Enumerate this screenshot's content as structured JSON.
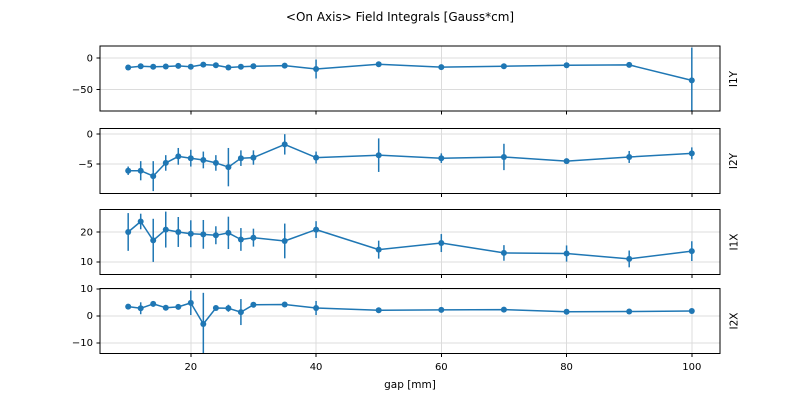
{
  "chart_data": {
    "type": "line",
    "title": "<On Axis> Field Integrals [Gauss*cm]",
    "xlabel": "gap [mm]",
    "grid": true,
    "legend": "none",
    "line_color": "#1f77b4",
    "grid_color": "#dcdcdc",
    "background_color": "#ffffff",
    "marker": "circle",
    "error_bars": true,
    "x": [
      10,
      12,
      14,
      16,
      18,
      20,
      22,
      24,
      26,
      28,
      30,
      35,
      40,
      50,
      60,
      70,
      80,
      90,
      100
    ],
    "xlim": [
      5.5,
      104.5
    ],
    "xticks": [
      20,
      40,
      60,
      80,
      100
    ],
    "subplots": [
      {
        "ylabel": "I1Y",
        "ylim": [
          -84,
          19
        ],
        "yticks": [
          0,
          -50
        ],
        "values": [
          -15,
          -13,
          -14,
          -13.5,
          -12.5,
          -14,
          -10.5,
          -11.5,
          -15,
          -14,
          -13,
          -12,
          -17.5,
          -10,
          -14.5,
          -13,
          -11.5,
          -11,
          -35.5
        ],
        "errors": [
          1.5,
          1,
          1,
          1,
          1,
          1,
          1,
          1,
          1.5,
          1,
          1,
          1.5,
          15,
          1.5,
          1.5,
          1,
          1,
          2,
          52
        ]
      },
      {
        "ylabel": "I2Y",
        "ylim": [
          -9.9,
          0.95
        ],
        "yticks": [
          0,
          -5
        ],
        "values": [
          -6.1,
          -6.1,
          -7.0,
          -4.8,
          -3.7,
          -4.0,
          -4.3,
          -4.8,
          -5.5,
          -4.0,
          -3.9,
          -1.7,
          -3.9,
          -3.5,
          -4.0,
          -3.8,
          -4.5,
          -3.8,
          -3.2
        ],
        "errors": [
          0.7,
          1.6,
          2.5,
          1.3,
          1.4,
          1.4,
          1.4,
          1.3,
          3.2,
          1.3,
          1.2,
          1.7,
          1.0,
          2.8,
          0.8,
          2.2,
          0.4,
          1.0,
          1.0
        ]
      },
      {
        "ylabel": "I1X",
        "ylim": [
          5.8,
          27.5
        ],
        "yticks": [
          20,
          10
        ],
        "values": [
          20,
          23.5,
          17.2,
          20.8,
          20,
          19.4,
          19.2,
          18.9,
          19.7,
          17.5,
          18.1,
          17,
          20.8,
          14.1,
          16.3,
          13,
          12.8,
          11,
          13.6
        ],
        "errors": [
          6.3,
          2.6,
          7.2,
          6,
          5,
          4.5,
          4.8,
          3,
          5.4,
          3.8,
          3,
          5.8,
          2.8,
          3,
          3,
          2.6,
          2.7,
          2.8,
          3.3
        ]
      },
      {
        "ylabel": "I2X",
        "ylim": [
          -13.9,
          10.1
        ],
        "yticks": [
          10,
          0,
          -10
        ],
        "values": [
          3.4,
          2.8,
          4.4,
          3.0,
          3.3,
          4.8,
          -3.0,
          2.9,
          2.8,
          1.4,
          4.1,
          4.2,
          2.9,
          2.1,
          2.2,
          2.3,
          1.5,
          1.6,
          1.8
        ],
        "errors": [
          0.7,
          2.2,
          1.0,
          0.8,
          0.8,
          4.5,
          11.5,
          0.7,
          1.3,
          4.8,
          0.5,
          0.6,
          2.6,
          0.5,
          0.7,
          0.7,
          0.4,
          0.5,
          0.7
        ]
      }
    ]
  }
}
